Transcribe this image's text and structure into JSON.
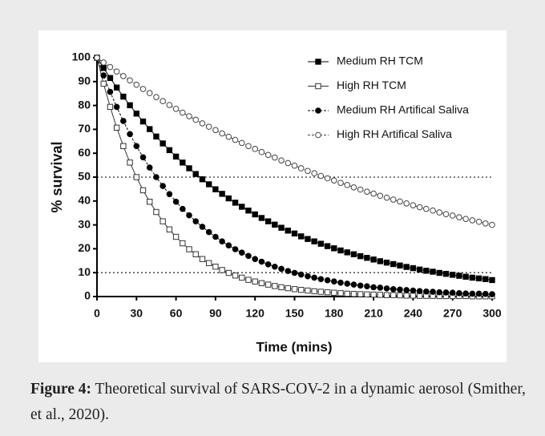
{
  "chart_data": {
    "type": "line",
    "y_label": "% survival",
    "x_label": "Time (mins)",
    "xlim": [
      0,
      300
    ],
    "ylim": [
      0,
      100
    ],
    "xticks": [
      0,
      30,
      60,
      90,
      120,
      150,
      180,
      210,
      240,
      270,
      300
    ],
    "yticks": [
      0,
      10,
      20,
      30,
      40,
      50,
      60,
      70,
      80,
      90,
      100
    ],
    "reference_lines": [
      50,
      10
    ],
    "legend": "upper right",
    "x": [
      0,
      5,
      10,
      15,
      20,
      25,
      30,
      35,
      40,
      45,
      50,
      55,
      60,
      65,
      70,
      75,
      80,
      85,
      90,
      95,
      100,
      105,
      110,
      115,
      120,
      125,
      130,
      135,
      140,
      145,
      150,
      155,
      160,
      165,
      170,
      175,
      180,
      185,
      190,
      195,
      200,
      205,
      210,
      215,
      220,
      225,
      230,
      235,
      240,
      245,
      250,
      255,
      260,
      265,
      270,
      275,
      280,
      285,
      290,
      295,
      300
    ],
    "series": [
      {
        "name": "Medium RH TCM",
        "color": "#000000",
        "marker": "square",
        "line_style": "solid",
        "values": [
          100,
          95.7,
          91.5,
          87.5,
          83.7,
          80.1,
          76.6,
          73.3,
          70.1,
          67.0,
          64.1,
          61.3,
          58.6,
          56.1,
          53.7,
          51.3,
          49.1,
          47.0,
          44.9,
          43.0,
          41.1,
          39.3,
          37.6,
          36.0,
          34.4,
          32.9,
          31.5,
          30.1,
          28.8,
          27.6,
          26.4,
          25.2,
          24.1,
          23.1,
          22.1,
          21.1,
          20.2,
          19.3,
          18.5,
          17.7,
          16.9,
          16.2,
          15.5,
          14.8,
          14.2,
          13.6,
          13.0,
          12.4,
          11.9,
          11.3,
          10.8,
          10.4,
          9.9,
          9.5,
          9.1,
          8.7,
          8.3,
          7.9,
          7.6,
          7.3,
          6.9
        ]
      },
      {
        "name": "High RH TCM",
        "color": "#333333",
        "marker": "square-open",
        "line_style": "solid",
        "values": [
          100,
          89.1,
          79.4,
          70.7,
          63.0,
          56.1,
          50.0,
          44.5,
          39.7,
          35.4,
          31.5,
          28.1,
          25.0,
          22.3,
          19.8,
          17.7,
          15.7,
          14.0,
          12.5,
          11.1,
          9.9,
          8.8,
          7.9,
          7.0,
          6.3,
          5.6,
          5.0,
          4.4,
          3.9,
          3.5,
          3.1,
          2.8,
          2.5,
          2.2,
          2.0,
          1.8,
          1.6,
          1.4,
          1.2,
          1.1,
          1.0,
          0.9,
          0.8,
          0.7,
          0.6,
          0.6,
          0.5,
          0.4,
          0.4,
          0.3,
          0.3,
          0.3,
          0.2,
          0.2,
          0.2,
          0.2,
          0.2,
          0.1,
          0.1,
          0.1,
          0.1
        ]
      },
      {
        "name": "Medium RH Artifical Saliva",
        "color": "#000000",
        "marker": "circle",
        "line_style": "dashed",
        "values": [
          100,
          92.6,
          85.7,
          79.4,
          73.5,
          68.0,
          63.0,
          58.3,
          54.0,
          50.0,
          46.3,
          42.9,
          39.7,
          36.7,
          34.0,
          31.5,
          29.2,
          27.0,
          25.0,
          23.1,
          21.4,
          19.8,
          18.4,
          17.0,
          15.7,
          14.6,
          13.5,
          12.5,
          11.6,
          10.7,
          9.9,
          9.2,
          8.5,
          7.9,
          7.3,
          6.8,
          6.3,
          5.8,
          5.4,
          5.0,
          4.6,
          4.3,
          3.9,
          3.7,
          3.4,
          3.1,
          2.9,
          2.7,
          2.5,
          2.3,
          2.1,
          2.0,
          1.8,
          1.7,
          1.6,
          1.4,
          1.3,
          1.2,
          1.2,
          1.1,
          1.0
        ]
      },
      {
        "name": "High RH Artifical Saliva",
        "color": "#444444",
        "marker": "circle-open",
        "line_style": "dashed",
        "values": [
          100,
          98.0,
          96.1,
          94.2,
          92.3,
          90.5,
          88.7,
          86.9,
          85.2,
          83.5,
          81.8,
          80.2,
          78.6,
          77.0,
          75.5,
          74.0,
          72.5,
          71.1,
          69.7,
          68.3,
          66.9,
          65.6,
          64.3,
          63.0,
          61.8,
          60.5,
          59.3,
          58.2,
          57.0,
          55.9,
          54.8,
          53.7,
          52.6,
          51.6,
          50.5,
          49.5,
          48.6,
          47.6,
          46.7,
          45.7,
          44.8,
          43.9,
          43.1,
          42.2,
          41.4,
          40.6,
          39.8,
          39.0,
          38.2,
          37.4,
          36.7,
          36.0,
          35.2,
          34.5,
          33.9,
          33.2,
          32.5,
          31.9,
          31.3,
          30.6,
          30.0
        ]
      }
    ]
  },
  "caption": {
    "label": "Figure 4:",
    "text": "Theoretical survival of SARS-COV-2 in a dynamic aerosol (Smither, et al., 2020)."
  }
}
